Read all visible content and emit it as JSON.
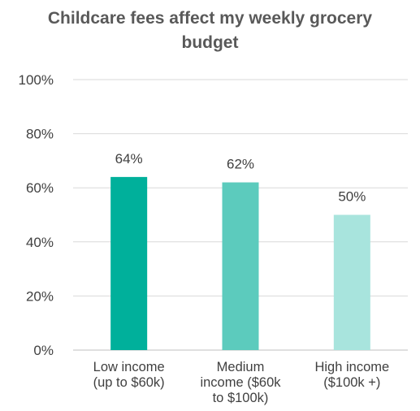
{
  "chart_data": {
    "type": "bar",
    "title_lines": [
      "Childcare fees affect my weekly grocery",
      "budget"
    ],
    "categories": [
      [
        "Low income",
        "(up to $60k)"
      ],
      [
        "Medium",
        "income ($60k",
        "to $100k)"
      ],
      [
        "High income",
        "($100k +)"
      ]
    ],
    "values": [
      64,
      62,
      50
    ],
    "data_labels": [
      "64%",
      "62%",
      "50%"
    ],
    "bar_colors": [
      "#00b09b",
      "#5ccbbd",
      "#a8e4dd"
    ],
    "ylim": [
      0,
      100
    ],
    "yticks": [
      0,
      20,
      40,
      60,
      80,
      100
    ],
    "ytick_labels": [
      "0%",
      "20%",
      "40%",
      "60%",
      "80%",
      "100%"
    ],
    "grid": true,
    "legend": "none"
  }
}
